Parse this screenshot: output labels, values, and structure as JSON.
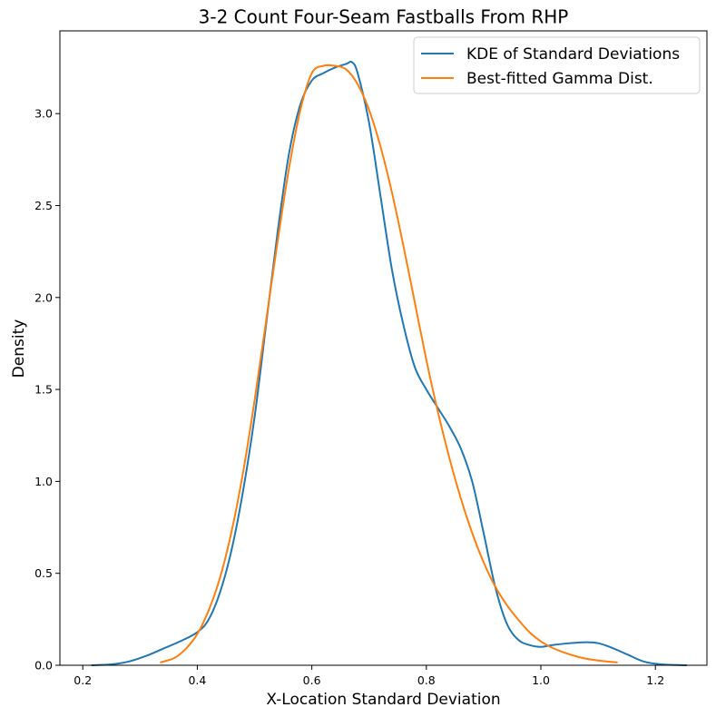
{
  "chart_data": {
    "type": "line",
    "title": "3-2 Count Four-Seam Fastballs From RHP",
    "xlabel": "X-Location Standard Deviation",
    "ylabel": "Density",
    "xlim": [
      0.16,
      1.29
    ],
    "ylim": [
      0.0,
      3.45
    ],
    "xticks": [
      0.2,
      0.4,
      0.6,
      0.8,
      1.0,
      1.2
    ],
    "xtick_labels": [
      "0.2",
      "0.4",
      "0.6",
      "0.8",
      "1.0",
      "1.2"
    ],
    "yticks": [
      0.0,
      0.5,
      1.0,
      1.5,
      2.0,
      2.5,
      3.0
    ],
    "ytick_labels": [
      "0.0",
      "0.5",
      "1.0",
      "1.5",
      "2.0",
      "2.5",
      "3.0"
    ],
    "grid": false,
    "legend_position": "top-right",
    "series": [
      {
        "name": "KDE of Standard Deviations",
        "color": "#1f77b4",
        "x": [
          0.215,
          0.25,
          0.28,
          0.31,
          0.34,
          0.37,
          0.4,
          0.42,
          0.44,
          0.46,
          0.48,
          0.5,
          0.52,
          0.54,
          0.56,
          0.58,
          0.6,
          0.62,
          0.64,
          0.66,
          0.67,
          0.68,
          0.7,
          0.72,
          0.74,
          0.76,
          0.78,
          0.8,
          0.82,
          0.84,
          0.86,
          0.88,
          0.9,
          0.92,
          0.94,
          0.96,
          0.98,
          1.0,
          1.02,
          1.05,
          1.08,
          1.1,
          1.12,
          1.15,
          1.18,
          1.21,
          1.255
        ],
        "y": [
          0.0,
          0.005,
          0.02,
          0.05,
          0.09,
          0.13,
          0.18,
          0.25,
          0.4,
          0.63,
          0.95,
          1.35,
          1.85,
          2.35,
          2.78,
          3.05,
          3.18,
          3.22,
          3.25,
          3.27,
          3.28,
          3.22,
          2.95,
          2.55,
          2.15,
          1.85,
          1.62,
          1.5,
          1.4,
          1.3,
          1.18,
          1.0,
          0.72,
          0.43,
          0.23,
          0.14,
          0.11,
          0.1,
          0.11,
          0.12,
          0.125,
          0.12,
          0.1,
          0.06,
          0.02,
          0.005,
          0.0
        ]
      },
      {
        "name": "Best-fitted Gamma Dist.",
        "color": "#ff7f0e",
        "x": [
          0.335,
          0.36,
          0.38,
          0.4,
          0.42,
          0.44,
          0.46,
          0.48,
          0.5,
          0.52,
          0.54,
          0.56,
          0.58,
          0.6,
          0.62,
          0.64,
          0.66,
          0.68,
          0.7,
          0.72,
          0.74,
          0.76,
          0.78,
          0.8,
          0.82,
          0.84,
          0.86,
          0.88,
          0.9,
          0.92,
          0.94,
          0.96,
          0.98,
          1.0,
          1.02,
          1.04,
          1.06,
          1.08,
          1.1,
          1.134
        ],
        "y": [
          0.015,
          0.04,
          0.09,
          0.17,
          0.3,
          0.48,
          0.73,
          1.05,
          1.44,
          1.87,
          2.3,
          2.7,
          3.02,
          3.22,
          3.26,
          3.26,
          3.24,
          3.16,
          3.02,
          2.82,
          2.57,
          2.28,
          1.97,
          1.66,
          1.38,
          1.13,
          0.91,
          0.72,
          0.56,
          0.43,
          0.33,
          0.25,
          0.18,
          0.13,
          0.095,
          0.07,
          0.05,
          0.035,
          0.026,
          0.015
        ]
      }
    ]
  }
}
